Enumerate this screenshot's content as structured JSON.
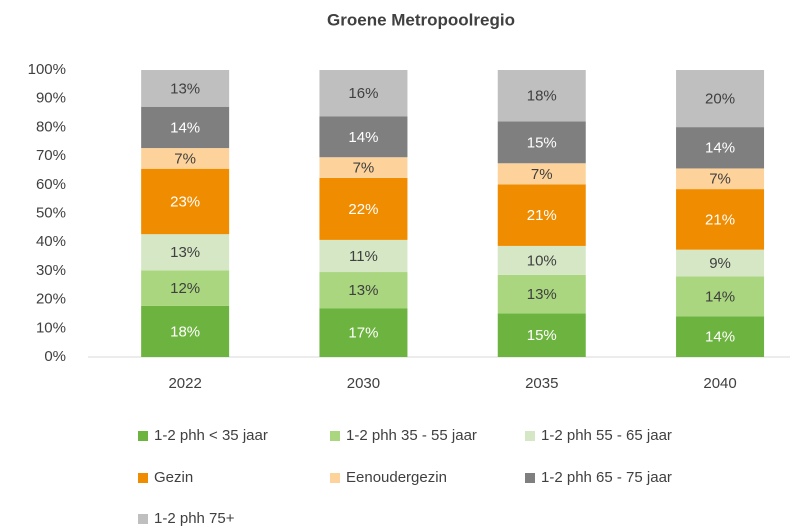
{
  "chart_data": {
    "type": "stacked_bar",
    "title": "Groene Metropoolregio",
    "categories": [
      "2022",
      "2030",
      "2035",
      "2040"
    ],
    "series": [
      {
        "name": "1-2 phh < 35 jaar",
        "color": "#6db33f",
        "values": [
          17.8,
          17.0,
          15.2,
          14.2
        ],
        "value_labels": [
          "18%",
          "17%",
          "15%",
          "14%"
        ]
      },
      {
        "name": "1-2 phh 35 - 55 jaar",
        "color": "#a9d67e",
        "values": [
          12.4,
          12.6,
          13.4,
          13.9
        ],
        "value_labels": [
          "12%",
          "13%",
          "13%",
          "14%"
        ]
      },
      {
        "name": "1-2 phh 55 - 65 jaar",
        "color": "#d6e7c5",
        "values": [
          12.6,
          11.2,
          10.1,
          9.3
        ],
        "value_labels": [
          "13%",
          "11%",
          "10%",
          "9%"
        ]
      },
      {
        "name": "Gezin",
        "color": "#f08c00",
        "values": [
          22.8,
          21.6,
          21.4,
          21.1
        ],
        "value_labels": [
          "23%",
          "22%",
          "21%",
          "21%"
        ]
      },
      {
        "name": "Eenoudergezin",
        "color": "#fdd39b",
        "values": [
          7.2,
          7.2,
          7.4,
          7.2
        ],
        "value_labels": [
          "7%",
          "7%",
          "7%",
          "7%"
        ]
      },
      {
        "name": "1-2 phh 65 - 75 jaar",
        "color": "#7f7f7f",
        "values": [
          14.4,
          14.2,
          14.6,
          14.4
        ],
        "value_labels": [
          "14%",
          "14%",
          "15%",
          "14%"
        ]
      },
      {
        "name": "1-2 phh 75+",
        "color": "#bfbfbf",
        "values": [
          12.8,
          16.2,
          17.9,
          19.9
        ],
        "value_labels": [
          "13%",
          "16%",
          "18%",
          "20%"
        ]
      }
    ],
    "ylim": [
      0,
      100
    ],
    "yticks": [
      {
        "value": 0,
        "label": "0%"
      },
      {
        "value": 10,
        "label": "10%"
      },
      {
        "value": 20,
        "label": "20%"
      },
      {
        "value": 30,
        "label": "30%"
      },
      {
        "value": 40,
        "label": "40%"
      },
      {
        "value": 50,
        "label": "50%"
      },
      {
        "value": 60,
        "label": "60%"
      },
      {
        "value": 70,
        "label": "70%"
      },
      {
        "value": 80,
        "label": "80%"
      },
      {
        "value": 90,
        "label": "90%"
      },
      {
        "value": 100,
        "label": "100%"
      }
    ],
    "legend": "bottom"
  }
}
